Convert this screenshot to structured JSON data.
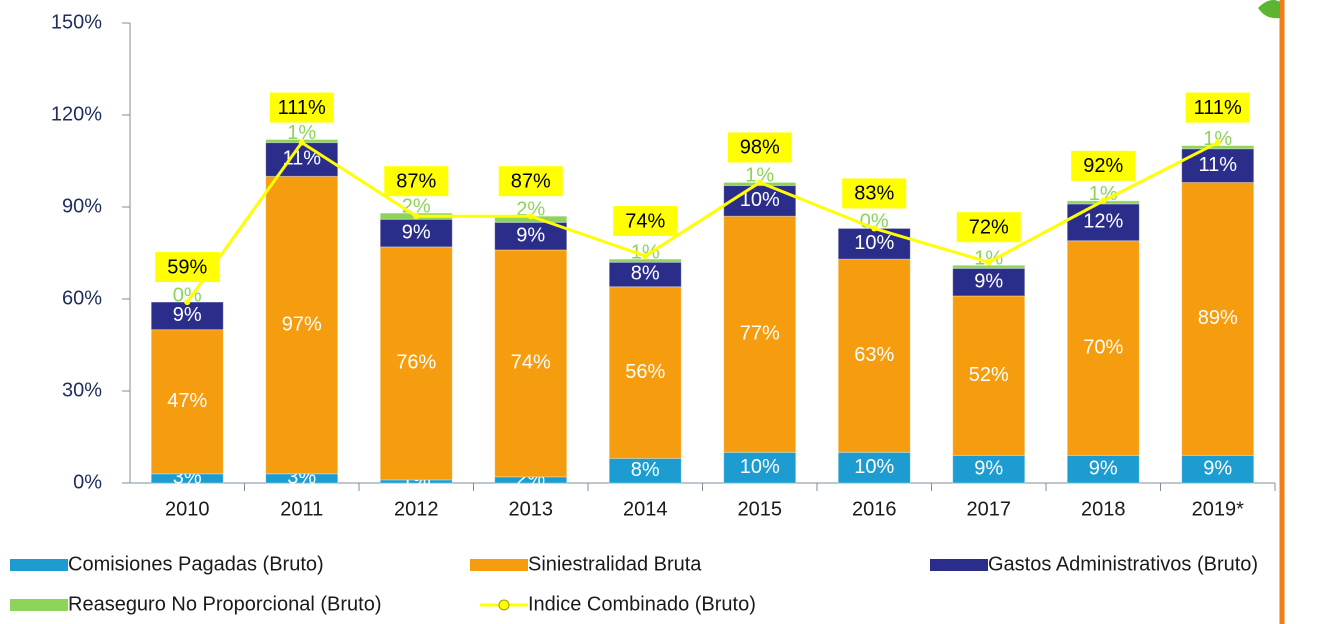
{
  "chart_data": {
    "type": "bar",
    "stacked": true,
    "categories": [
      "2010",
      "2011",
      "2012",
      "2013",
      "2014",
      "2015",
      "2016",
      "2017",
      "2018",
      "2019*"
    ],
    "ylim": [
      0,
      150
    ],
    "yticks": [
      {
        "value": 0,
        "label": "0%"
      },
      {
        "value": 30,
        "label": "30%"
      },
      {
        "value": 60,
        "label": "60%"
      },
      {
        "value": 90,
        "label": "90%"
      },
      {
        "value": 120,
        "label": "120%"
      },
      {
        "value": 150,
        "label": "150%"
      }
    ],
    "series": [
      {
        "name": "Comisiones Pagadas (Bruto)",
        "color": "#1c9cd0",
        "label_color": "#ffffff",
        "values": [
          3,
          3,
          1,
          2,
          8,
          10,
          10,
          9,
          9,
          9
        ],
        "value_labels": [
          "3%",
          "3%",
          "1%",
          "2%",
          "8%",
          "10%",
          "10%",
          "9%",
          "9%",
          "9%"
        ]
      },
      {
        "name": "Siniestralidad Bruta",
        "color": "#f59d0e",
        "label_color": "#ffffff",
        "values": [
          47,
          97,
          76,
          74,
          56,
          77,
          63,
          52,
          70,
          89
        ],
        "value_labels": [
          "47%",
          "97%",
          "76%",
          "74%",
          "56%",
          "77%",
          "63%",
          "52%",
          "70%",
          "89%"
        ]
      },
      {
        "name": "Gastos Administrativos (Bruto)",
        "color": "#2a2d8a",
        "label_color": "#ffffff",
        "values": [
          9,
          11,
          9,
          9,
          8,
          10,
          10,
          9,
          12,
          11
        ],
        "value_labels": [
          "9%",
          "11%",
          "9%",
          "9%",
          "8%",
          "10%",
          "10%",
          "9%",
          "12%",
          "11%"
        ]
      },
      {
        "name": "Reaseguro No Proporcional (Bruto)",
        "color": "#8ed35a",
        "label_color": "#8ed35a",
        "values": [
          0,
          1,
          2,
          2,
          1,
          1,
          0,
          1,
          1,
          1
        ],
        "value_labels": [
          "0%",
          "1%",
          "2%",
          "2%",
          "1%",
          "1%",
          "0%",
          "1%",
          "1%",
          "1%"
        ]
      },
      {
        "name": "Indice Combinado (Bruto)",
        "type": "line",
        "color": "#ffff00",
        "values": [
          59,
          111,
          87,
          87,
          74,
          98,
          83,
          72,
          92,
          111
        ],
        "value_labels": [
          "59%",
          "111%",
          "87%",
          "87%",
          "74%",
          "98%",
          "83%",
          "72%",
          "92%",
          "111%"
        ]
      }
    ]
  }
}
